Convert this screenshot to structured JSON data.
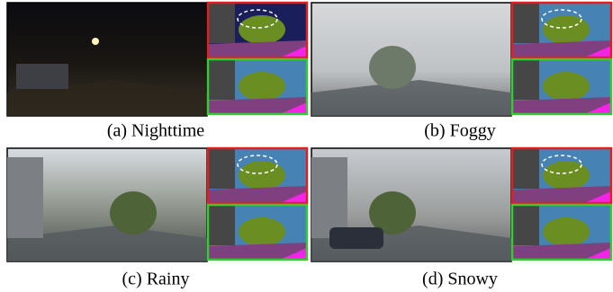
{
  "panels": [
    {
      "caption": "(a) Nighttime"
    },
    {
      "caption": "(b) Foggy"
    },
    {
      "caption": "(c) Rainy"
    },
    {
      "caption": "(d) Snowy"
    }
  ]
}
